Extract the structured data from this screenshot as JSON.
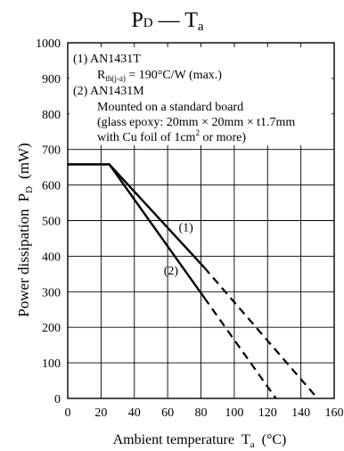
{
  "chart_data": {
    "type": "line",
    "title_main": "P",
    "title_sub1": "D",
    "title_dash": " — T",
    "title_sub2": "a",
    "xlabel_main": "Ambient temperature",
    "xlabel_sym": "T",
    "xlabel_sub": "a",
    "xlabel_unit": "(°C)",
    "ylabel_main": "Power dissipation",
    "ylabel_sym": "P",
    "ylabel_sub": "D",
    "ylabel_unit": "(mW)",
    "xlim": [
      0,
      160
    ],
    "ylim": [
      0,
      1000
    ],
    "x_ticks": [
      0,
      20,
      40,
      60,
      80,
      100,
      120,
      140,
      160
    ],
    "y_ticks": [
      0,
      100,
      200,
      300,
      400,
      500,
      600,
      700,
      800,
      900,
      1000
    ],
    "grid": true,
    "series": [
      {
        "name": "(1)",
        "solid": [
          [
            0,
            658
          ],
          [
            25,
            658
          ],
          [
            82,
            368
          ]
        ],
        "dashed": [
          [
            82,
            368
          ],
          [
            150,
            0
          ]
        ]
      },
      {
        "name": "(2)",
        "solid": [
          [
            0,
            658
          ],
          [
            25,
            658
          ],
          [
            82,
            283
          ]
        ],
        "dashed": [
          [
            82,
            283
          ],
          [
            125,
            0
          ]
        ]
      }
    ],
    "series_label_positions": [
      {
        "text": "(1)",
        "x": 71,
        "y": 470
      },
      {
        "text": "(2)",
        "x": 62,
        "y": 348
      }
    ],
    "legend": {
      "l1": "(1)  AN1431T",
      "l2_a": "R",
      "l2_sub": "th(j-a)",
      "l2_b": " = 190°C/W (max.)",
      "l3": "(2)  AN1431M",
      "l4": "Mounted on a standard board",
      "l5": "(glass epoxy: 20mm × 20mm × t1.7mm",
      "l6_a": "with Cu foil of 1cm",
      "l6_sup": "2",
      "l6_b": " or more)"
    }
  }
}
